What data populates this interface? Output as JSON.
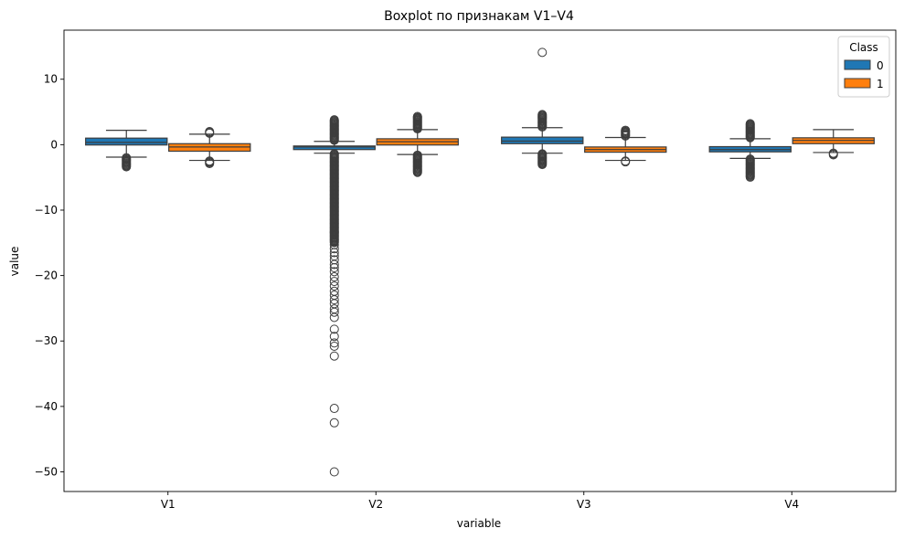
{
  "chart_data": {
    "type": "boxplot",
    "title": "Boxplot по признакам V1–V4",
    "xlabel": "variable",
    "ylabel": "value",
    "categories": [
      "V1",
      "V2",
      "V3",
      "V4"
    ],
    "ylim": [
      -53,
      17.5
    ],
    "yticks": [
      10,
      0,
      -10,
      -20,
      -30,
      -40,
      -50
    ],
    "ytick_labels": [
      "10",
      "0",
      "−10",
      "−20",
      "−30",
      "−40",
      "−50"
    ],
    "grid": false,
    "legend": {
      "title": "Class",
      "placement": "top-right",
      "entries": [
        "0",
        "1"
      ]
    },
    "series": [
      {
        "name": "0",
        "color": "#1f77b4",
        "stats": [
          {
            "category": "V1",
            "whisker_low": -1.9,
            "q1": -0.05,
            "median": 0.35,
            "q3": 1.0,
            "whisker_high": 2.2,
            "outlier_bands": [
              [
                -3.5,
                -2.0
              ]
            ],
            "outliers": []
          },
          {
            "category": "V2",
            "whisker_low": -1.3,
            "q1": -0.75,
            "median": -0.35,
            "q3": -0.2,
            "whisker_high": 0.5,
            "outlier_bands": [
              [
                -15.0,
                -1.4
              ],
              [
                0.6,
                3.8
              ]
            ],
            "outliers": [
              -50.0,
              -42.5,
              -40.3,
              -32.3,
              -30.8,
              -30.3,
              -29.3,
              -28.2,
              -26.4,
              -25.6,
              -25.1,
              -24.3,
              -23.7,
              -23.0,
              -22.4,
              -21.6,
              -20.9,
              -20.2,
              -19.4,
              -18.8,
              -18.3,
              -17.6,
              -17.0,
              -16.5,
              -15.9,
              -15.3
            ]
          },
          {
            "category": "V3",
            "whisker_low": -1.3,
            "q1": 0.15,
            "median": 0.55,
            "q3": 1.15,
            "whisker_high": 2.6,
            "outlier_bands": [
              [
                -3.1,
                -1.4
              ],
              [
                2.7,
                4.6
              ]
            ],
            "outliers": [
              14.1
            ]
          },
          {
            "category": "V4",
            "whisker_low": -2.1,
            "q1": -1.1,
            "median": -0.75,
            "q3": -0.3,
            "whisker_high": 0.9,
            "outlier_bands": [
              [
                -5.0,
                -2.2
              ],
              [
                1.0,
                3.2
              ]
            ],
            "outliers": []
          }
        ]
      },
      {
        "name": "1",
        "color": "#ff7f0e",
        "stats": [
          {
            "category": "V1",
            "whisker_low": -2.4,
            "q1": -1.0,
            "median": -0.35,
            "q3": 0.15,
            "whisker_high": 1.6,
            "outlier_bands": [
              [
                -2.9,
                -2.5
              ],
              [
                1.7,
                2.0
              ]
            ],
            "outliers": []
          },
          {
            "category": "V2",
            "whisker_low": -1.5,
            "q1": -0.05,
            "median": 0.45,
            "q3": 0.9,
            "whisker_high": 2.3,
            "outlier_bands": [
              [
                -4.3,
                -1.6
              ],
              [
                2.4,
                4.3
              ]
            ],
            "outliers": []
          },
          {
            "category": "V3",
            "whisker_low": -2.4,
            "q1": -1.15,
            "median": -0.75,
            "q3": -0.35,
            "whisker_high": 1.1,
            "outlier_bands": [
              [
                -2.7,
                -2.5
              ],
              [
                1.2,
                2.2
              ]
            ],
            "outliers": []
          },
          {
            "category": "V4",
            "whisker_low": -1.2,
            "q1": 0.15,
            "median": 0.65,
            "q3": 1.05,
            "whisker_high": 2.3,
            "outlier_bands": [
              [
                -1.6,
                -1.3
              ]
            ],
            "outliers": []
          }
        ]
      }
    ]
  }
}
